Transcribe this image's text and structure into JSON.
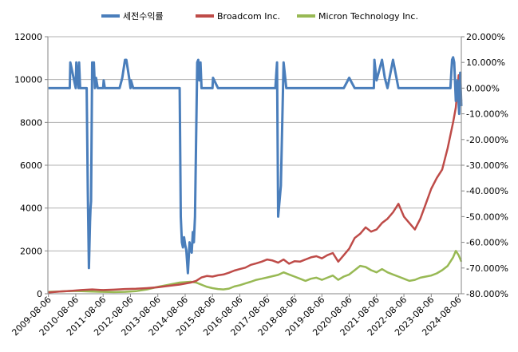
{
  "chart_data": {
    "type": "line",
    "title": "",
    "legend": {
      "placement": "top",
      "entries": [
        "세전수익률",
        "Broadcom Inc.",
        "Micron Technology Inc."
      ]
    },
    "colors": {
      "return": "#4a7ebb",
      "broadcom": "#be4b48",
      "micron": "#98b954",
      "grid": "#b0b0b0",
      "axis": "#868686"
    },
    "grid": true,
    "x_range": [
      2009.58,
      2024.7
    ],
    "x_ticks": [
      "2009-08-06",
      "2010-08-06",
      "2011-08-06",
      "2012-08-06",
      "2013-08-06",
      "2014-08-06",
      "2015-08-06",
      "2016-08-06",
      "2017-08-06",
      "2018-08-06",
      "2019-08-06",
      "2020-08-06",
      "2021-08-06",
      "2022-08-06",
      "2023-08-06",
      "2024-08-06"
    ],
    "y_left": {
      "min": 0,
      "max": 12000,
      "ticks": [
        "0",
        "2000",
        "4000",
        "6000",
        "8000",
        "10000",
        "12000"
      ]
    },
    "y_right": {
      "min": -0.8,
      "max": 0.2,
      "ticks": [
        "-80.000%",
        "-70.000%",
        "-60.000%",
        "-50.000%",
        "-40.000%",
        "-30.000%",
        "-20.000%",
        "-10.000%",
        "0.000%",
        "10.000%",
        "20.000%"
      ]
    },
    "series": [
      {
        "name": "세전수익률",
        "axis": "right",
        "x": [
          2009.6,
          2010.38,
          2010.4,
          2010.6,
          2010.62,
          2010.7,
          2010.72,
          2010.76,
          2010.8,
          2011.0,
          2011.02,
          2011.04,
          2011.08,
          2011.12,
          2011.14,
          2011.16,
          2011.2,
          2011.22,
          2011.26,
          2011.3,
          2011.34,
          2011.4,
          2011.46,
          2011.5,
          2011.6,
          2011.62,
          2011.66,
          2011.7,
          2011.8,
          2012.0,
          2012.2,
          2012.3,
          2012.4,
          2012.45,
          2012.55,
          2012.6,
          2012.62,
          2012.7,
          2012.8,
          2012.9,
          2013.0,
          2013.2,
          2013.4,
          2013.5,
          2013.6,
          2013.7,
          2013.9,
          2014.0,
          2014.2,
          2014.3,
          2014.35,
          2014.4,
          2014.44,
          2014.48,
          2014.52,
          2014.56,
          2014.6,
          2014.64,
          2014.7,
          2014.76,
          2014.8,
          2014.84,
          2014.88,
          2014.92,
          2014.96,
          2015.0,
          2015.04,
          2015.08,
          2015.12,
          2015.16,
          2015.2,
          2015.4,
          2015.6,
          2015.62,
          2015.8,
          2016.0,
          2016.2,
          2016.4,
          2016.6,
          2016.8,
          2017.0,
          2017.2,
          2017.4,
          2017.6,
          2017.7,
          2017.72,
          2017.8,
          2017.9,
          2017.96,
          2018.0,
          2018.1,
          2018.2,
          2018.3,
          2018.4,
          2018.6,
          2018.8,
          2019.0,
          2019.2,
          2019.4,
          2019.6,
          2019.8,
          2020.0,
          2020.2,
          2020.4,
          2020.6,
          2020.8,
          2021.0,
          2021.2,
          2021.4,
          2021.5,
          2021.52,
          2021.6,
          2021.8,
          2021.9,
          2022.0,
          2022.2,
          2022.4,
          2022.5,
          2022.52,
          2022.6,
          2022.8,
          2023.0,
          2023.2,
          2023.4,
          2023.6,
          2023.8,
          2024.0,
          2024.1,
          2024.2,
          2024.3,
          2024.36,
          2024.4,
          2024.44,
          2024.5,
          2024.56,
          2024.62,
          2024.66,
          2024.7
        ],
        "values": [
          0.0,
          0.0,
          0.1,
          0.0,
          0.1,
          0.0,
          0.1,
          0.0,
          0.0,
          0.0,
          -0.2,
          -0.4,
          -0.7,
          -0.52,
          -0.47,
          -0.44,
          0.1,
          0.04,
          0.1,
          0.0,
          0.04,
          0.0,
          0.0,
          0.0,
          0.0,
          0.03,
          0.0,
          0.0,
          0.0,
          0.0,
          0.0,
          0.04,
          0.11,
          0.11,
          0.04,
          0.0,
          0.03,
          0.0,
          0.0,
          0.0,
          0.0,
          0.0,
          0.0,
          0.0,
          0.0,
          0.0,
          0.0,
          0.0,
          0.0,
          0.0,
          0.0,
          0.0,
          -0.5,
          -0.6,
          -0.62,
          -0.58,
          -0.61,
          -0.63,
          -0.72,
          -0.6,
          -0.63,
          -0.64,
          -0.56,
          -0.6,
          -0.5,
          -0.2,
          0.1,
          0.11,
          0.03,
          0.1,
          0.0,
          0.0,
          0.0,
          0.04,
          0.0,
          0.0,
          0.0,
          0.0,
          0.0,
          0.0,
          0.0,
          0.0,
          0.0,
          0.0,
          0.0,
          0.0,
          0.0,
          0.0,
          0.1,
          -0.5,
          -0.38,
          0.1,
          0.0,
          0.0,
          0.0,
          0.0,
          0.0,
          0.0,
          0.0,
          0.0,
          0.0,
          0.0,
          0.0,
          0.0,
          0.04,
          0.0,
          0.0,
          0.0,
          0.0,
          0.0,
          0.11,
          0.03,
          0.11,
          0.04,
          0.0,
          0.11,
          0.0,
          0.0,
          0.0,
          0.0,
          0.0,
          0.0,
          0.0,
          0.0,
          0.0,
          0.0,
          0.0,
          0.0,
          0.0,
          0.0,
          0.11,
          0.12,
          0.1,
          -0.05,
          0.03,
          -0.1,
          0.06,
          -0.07
        ]
      },
      {
        "name": "Broadcom Inc.",
        "axis": "left",
        "x": [
          2009.6,
          2010.0,
          2010.4,
          2010.8,
          2011.2,
          2011.6,
          2012.0,
          2012.4,
          2012.8,
          2013.2,
          2013.6,
          2014.0,
          2014.4,
          2014.8,
          2015.0,
          2015.2,
          2015.4,
          2015.6,
          2015.8,
          2016.0,
          2016.2,
          2016.4,
          2016.6,
          2016.8,
          2017.0,
          2017.2,
          2017.4,
          2017.6,
          2017.8,
          2018.0,
          2018.2,
          2018.4,
          2018.6,
          2018.8,
          2019.0,
          2019.2,
          2019.4,
          2019.6,
          2019.8,
          2020.0,
          2020.2,
          2020.4,
          2020.6,
          2020.8,
          2021.0,
          2021.2,
          2021.4,
          2021.6,
          2021.8,
          2022.0,
          2022.2,
          2022.4,
          2022.6,
          2022.8,
          2023.0,
          2023.2,
          2023.4,
          2023.6,
          2023.8,
          2024.0,
          2024.2,
          2024.4,
          2024.5,
          2024.6,
          2024.7
        ],
        "values": [
          60,
          100,
          130,
          170,
          200,
          170,
          190,
          220,
          230,
          260,
          300,
          370,
          430,
          520,
          600,
          760,
          830,
          800,
          860,
          900,
          980,
          1080,
          1150,
          1220,
          1350,
          1420,
          1500,
          1600,
          1550,
          1450,
          1600,
          1400,
          1520,
          1500,
          1600,
          1700,
          1750,
          1650,
          1800,
          1900,
          1500,
          1800,
          2100,
          2600,
          2800,
          3100,
          2900,
          3000,
          3300,
          3500,
          3800,
          4200,
          3600,
          3300,
          3000,
          3500,
          4200,
          4900,
          5400,
          5800,
          6800,
          8000,
          8700,
          10200,
          9000
        ]
      },
      {
        "name": "Micron Technology Inc.",
        "axis": "left",
        "x": [
          2009.6,
          2010.0,
          2010.4,
          2010.8,
          2011.2,
          2011.6,
          2012.0,
          2012.4,
          2012.8,
          2013.2,
          2013.6,
          2014.0,
          2014.4,
          2014.8,
          2015.0,
          2015.2,
          2015.4,
          2015.6,
          2015.8,
          2016.0,
          2016.2,
          2016.4,
          2016.6,
          2016.8,
          2017.0,
          2017.2,
          2017.4,
          2017.6,
          2017.8,
          2018.0,
          2018.2,
          2018.4,
          2018.6,
          2018.8,
          2019.0,
          2019.2,
          2019.4,
          2019.6,
          2019.8,
          2020.0,
          2020.2,
          2020.4,
          2020.6,
          2020.8,
          2021.0,
          2021.2,
          2021.4,
          2021.6,
          2021.8,
          2022.0,
          2022.2,
          2022.4,
          2022.6,
          2022.8,
          2023.0,
          2023.2,
          2023.4,
          2023.6,
          2023.8,
          2024.0,
          2024.2,
          2024.4,
          2024.5,
          2024.6,
          2024.7
        ],
        "values": [
          90,
          100,
          130,
          120,
          100,
          90,
          80,
          90,
          120,
          200,
          320,
          420,
          520,
          560,
          520,
          420,
          320,
          260,
          220,
          200,
          240,
          340,
          400,
          480,
          560,
          650,
          700,
          760,
          820,
          880,
          1000,
          900,
          800,
          700,
          600,
          700,
          750,
          650,
          750,
          850,
          650,
          800,
          900,
          1100,
          1300,
          1250,
          1100,
          1000,
          1150,
          1000,
          900,
          800,
          700,
          600,
          650,
          750,
          800,
          850,
          950,
          1100,
          1300,
          1700,
          2000,
          1800,
          1500
        ]
      }
    ]
  }
}
